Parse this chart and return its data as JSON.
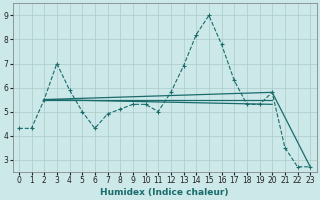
{
  "xlabel": "Humidex (Indice chaleur)",
  "bg_color": "#cce8e8",
  "grid_color": "#aacccc",
  "line_color": "#1a6b6b",
  "xlim": [
    -0.5,
    23.5
  ],
  "ylim": [
    2.5,
    9.5
  ],
  "yticks": [
    3,
    4,
    5,
    6,
    7,
    8,
    9
  ],
  "xticks": [
    0,
    1,
    2,
    3,
    4,
    5,
    6,
    7,
    8,
    9,
    10,
    11,
    12,
    13,
    14,
    15,
    16,
    17,
    18,
    19,
    20,
    21,
    22,
    23
  ],
  "series_main": {
    "x": [
      0,
      1,
      2,
      3,
      4,
      5,
      6,
      7,
      8,
      9,
      10,
      11,
      12,
      13,
      14,
      15,
      16,
      17,
      18,
      19,
      20,
      21,
      22,
      23
    ],
    "y": [
      4.3,
      4.3,
      5.5,
      7.0,
      5.9,
      5.0,
      4.3,
      4.9,
      5.1,
      5.3,
      5.3,
      5.0,
      5.8,
      6.9,
      8.2,
      9.0,
      7.8,
      6.3,
      5.3,
      5.3,
      5.8,
      3.5,
      2.7,
      2.7
    ]
  },
  "series_line1": {
    "x": [
      2,
      20
    ],
    "y": [
      5.5,
      5.3
    ]
  },
  "series_line2": {
    "x": [
      2,
      20,
      23
    ],
    "y": [
      5.5,
      5.8,
      2.7
    ]
  },
  "series_flat": {
    "x": [
      2,
      20
    ],
    "y": [
      5.5,
      5.5
    ]
  }
}
